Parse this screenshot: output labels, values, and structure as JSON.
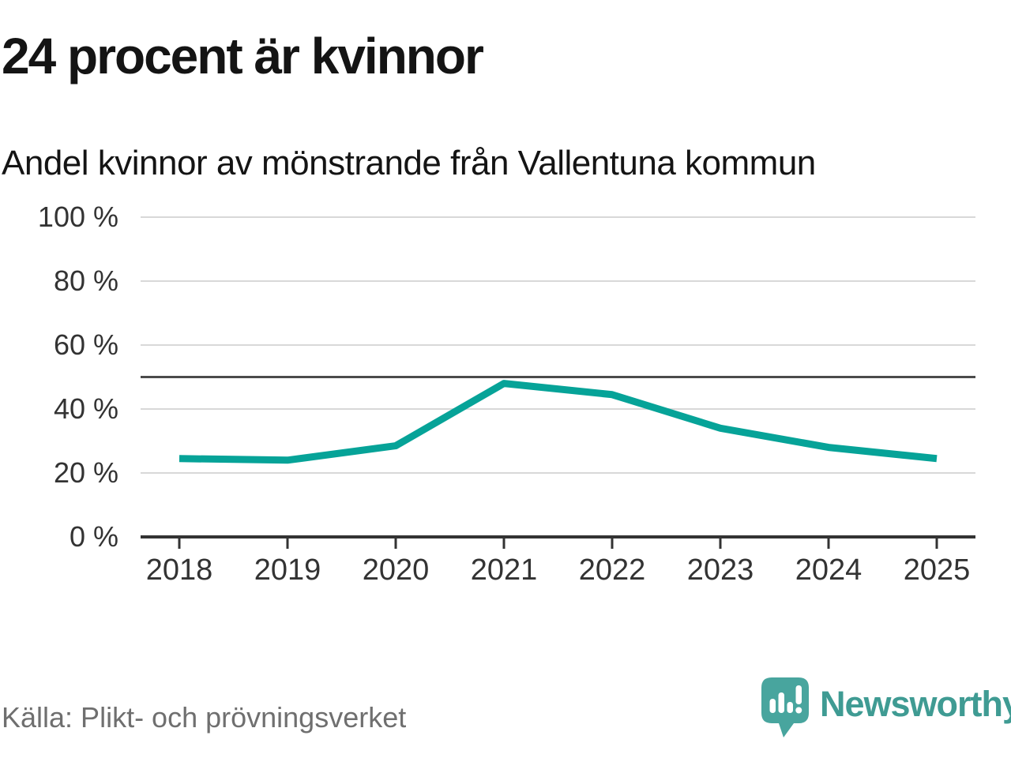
{
  "header": {
    "title": "24 procent är kvinnor",
    "subtitle": "Andel kvinnor av mönstrande från Vallentuna kommun"
  },
  "footer": {
    "source": "Källa: Plikt- och prövningsverket",
    "brand": "Newsworthy"
  },
  "colors": {
    "line": "#06a398",
    "grid": "#d8d8d8",
    "reference_line": "#4b4b4b",
    "axis": "#333333",
    "tick_label": "#333333",
    "title_text": "#141414",
    "source_text": "#6f6f6f",
    "brand_text": "#3f9b93",
    "brand_icon": "#48a59e"
  },
  "chart_data": {
    "type": "line",
    "title": "24 procent är kvinnor",
    "subtitle": "Andel kvinnor av mönstrande från Vallentuna kommun",
    "x": [
      2018,
      2019,
      2020,
      2021,
      2022,
      2023,
      2024,
      2025
    ],
    "series": [
      {
        "name": "Andel kvinnor av mönstrande",
        "color": "#06a398",
        "values": [
          24.5,
          24,
          28.5,
          48,
          44.5,
          34,
          28,
          24.5
        ]
      }
    ],
    "ylim": [
      0,
      100
    ],
    "ytick_values": [
      100,
      80,
      60,
      40,
      20,
      0
    ],
    "ytick_labels": [
      "100 %",
      "80 %",
      "60 %",
      "40 %",
      "20 %",
      "0 %"
    ],
    "xtick_labels": [
      "2018",
      "2019",
      "2020",
      "2021",
      "2022",
      "2023",
      "2024",
      "2025"
    ],
    "reference_line": 50,
    "grid": true,
    "legend": false,
    "source": "Källa: Plikt- och prövningsverket"
  }
}
